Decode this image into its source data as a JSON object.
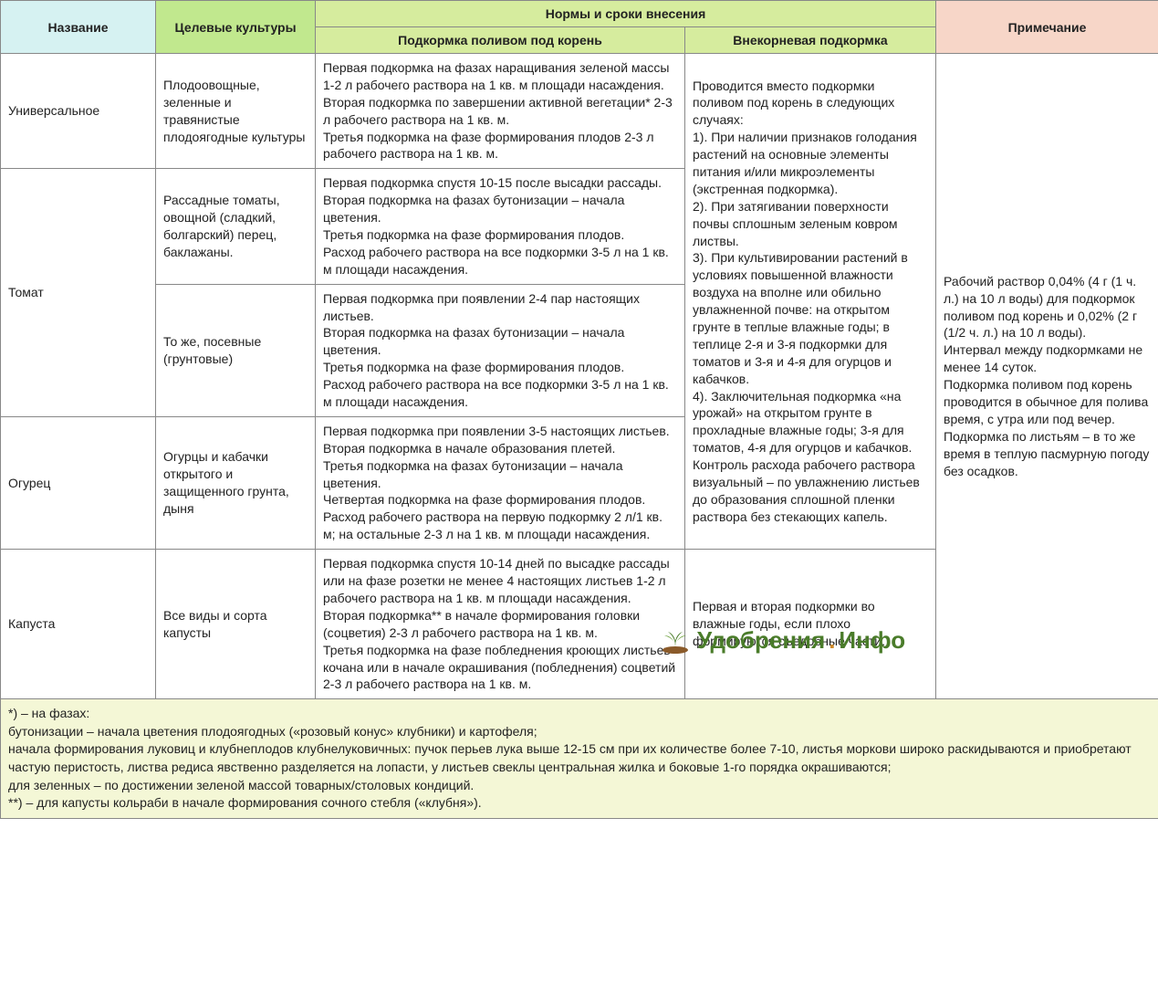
{
  "colors": {
    "header_name_bg": "#d6f2f2",
    "header_target_bg": "#c1e88e",
    "header_norms_bg": "#d6ec9e",
    "header_root_bg": "#d6ec9e",
    "header_foliar_bg": "#d6ec9e",
    "header_note_bg": "#f7d6c8",
    "footnote_bg": "#f4f7d6",
    "border": "#888888",
    "wm_green": "#4a7c2a",
    "wm_orange": "#d08a2a"
  },
  "headers": {
    "name": "Название",
    "target": "Целевые культуры",
    "norms_group": "Нормы и сроки внесения",
    "root": "Подкормка поливом под корень",
    "foliar": "Внекорневая подкормка",
    "note": "Примечание"
  },
  "rows": {
    "r1": {
      "name": "Универсальное",
      "target": "Плодоовощные, зеленные и травянистые плодоягодные культуры",
      "root": "Первая подкормка на фазах наращивания зеленой массы 1-2 л рабочего раствора на 1 кв. м площади насаждения.\nВторая подкормка по завершении активной вегетации* 2-3 л рабочего раствора на 1 кв. м.\nТретья подкормка на фазе формирования плодов 2-3 л рабочего раствора на 1 кв. м."
    },
    "r2a": {
      "name": "Томат",
      "target": "Рассадные томаты, овощной (сладкий, болгарский) перец, баклажаны.",
      "root": "Первая подкормка спустя 10-15 после высадки рассады.\nВторая подкормка на фазах бутонизации – начала цветения.\nТретья подкормка на фазе формирования плодов.\nРасход рабочего раствора на все подкормки 3-5 л на 1 кв. м площади насаждения."
    },
    "r2b": {
      "target": "То же, посевные (грунтовые)",
      "root": "Первая подкормка при появлении 2-4 пар настоящих листьев.\nВторая подкормка на фазах бутонизации – начала цветения.\nТретья подкормка на фазе формирования плодов.\nРасход рабочего раствора на все подкормки 3-5 л на 1 кв. м площади насаждения."
    },
    "r3": {
      "name": "Огурец",
      "target": "Огурцы и кабачки открытого и защищенного грунта, дыня",
      "root": "Первая подкормка при появлении 3-5 настоящих листьев.\nВторая подкормка в начале образования плетей.\nТретья подкормка на фазах бутонизации – начала цветения.\nЧетвертая подкормка на фазе формирования плодов.\nРасход рабочего раствора на первую подкормку 2 л/1 кв. м; на остальные 2-3 л на 1 кв. м площади насаждения."
    },
    "r4": {
      "name": "Капуста",
      "target": "Все виды и сорта капусты",
      "root": "Первая подкормка спустя 10-14 дней по высадке рассады или на фазе розетки не менее 4 настоящих листьев 1-2 л рабочего раствора на 1 кв. м площади насаждения.\nВторая подкормка** в начале формирования головки (соцветия) 2-3 л рабочего раствора на 1 кв. м.\nТретья подкормка на фазе побледнения кроющих листьев кочана или в начале окрашивания (побледнения) соцветий 2-3 л рабочего раствора на 1 кв. м.",
      "foliar": "Первая и вторая подкормки во влажные годы, если плохо формируются съедобные части."
    },
    "foliar_merged": "Проводится вместо подкормки поливом под корень в следующих случаях:\n1). При наличии признаков голодания растений на основные элементы питания и/или микроэлементы (экстренная подкормка).\n2). При затягивании поверхности почвы сплошным зеленым ковром листвы.\n3). При культивировании растений в условиях повышенной влажности воздуха на вполне или обильно увлажненной почве: на открытом грунте в теплые влажные годы; в теплице 2-я и 3-я подкормки для томатов и 3-я и 4-я для огурцов и кабачков.\n4). Заключительная подкормка «на урожай» на открытом грунте в прохладные влажные годы; 3-я для томатов, 4-я для огурцов и кабачков.\nКонтроль расхода рабочего раствора визуальный – по увлажнению листьев до образования сплошной пленки раствора без стекающих капель.",
    "note_merged": "Рабочий раствор 0,04% (4 г (1 ч. л.) на 10 л воды) для подкормок поливом под корень и 0,02% (2 г (1/2 ч. л.) на 10 л воды).\nИнтервал между подкормками не менее 14 суток.\nПодкормка поливом под корень проводится в обычное для полива время, с утра или под вечер.\nПодкормка по листьям – в то же время в теплую пасмурную погоду без осадков."
  },
  "footnote": "*) – на фазах:\nбутонизации – начала цветения плодоягодных («розовый конус» клубники) и картофеля;\nначала формирования луковиц и клубнеплодов клубнелуковичных: пучок перьев лука выше 12-15 см при их количестве более 7-10, листья моркови широко раскидываются и приобретают частую перистость, листва редиса явственно разделяется на лопасти, у листьев свеклы центральная жилка и боковые 1-го порядка окрашиваются;\nдля зеленных – по достижении зеленой массой товарных/столовых кондиций.\n**) – для капусты кольраби в начале формирования сочного стебля («клубня»).",
  "watermark": {
    "part1": "Удобрения",
    "dot": ".",
    "part2": "Инфо"
  }
}
